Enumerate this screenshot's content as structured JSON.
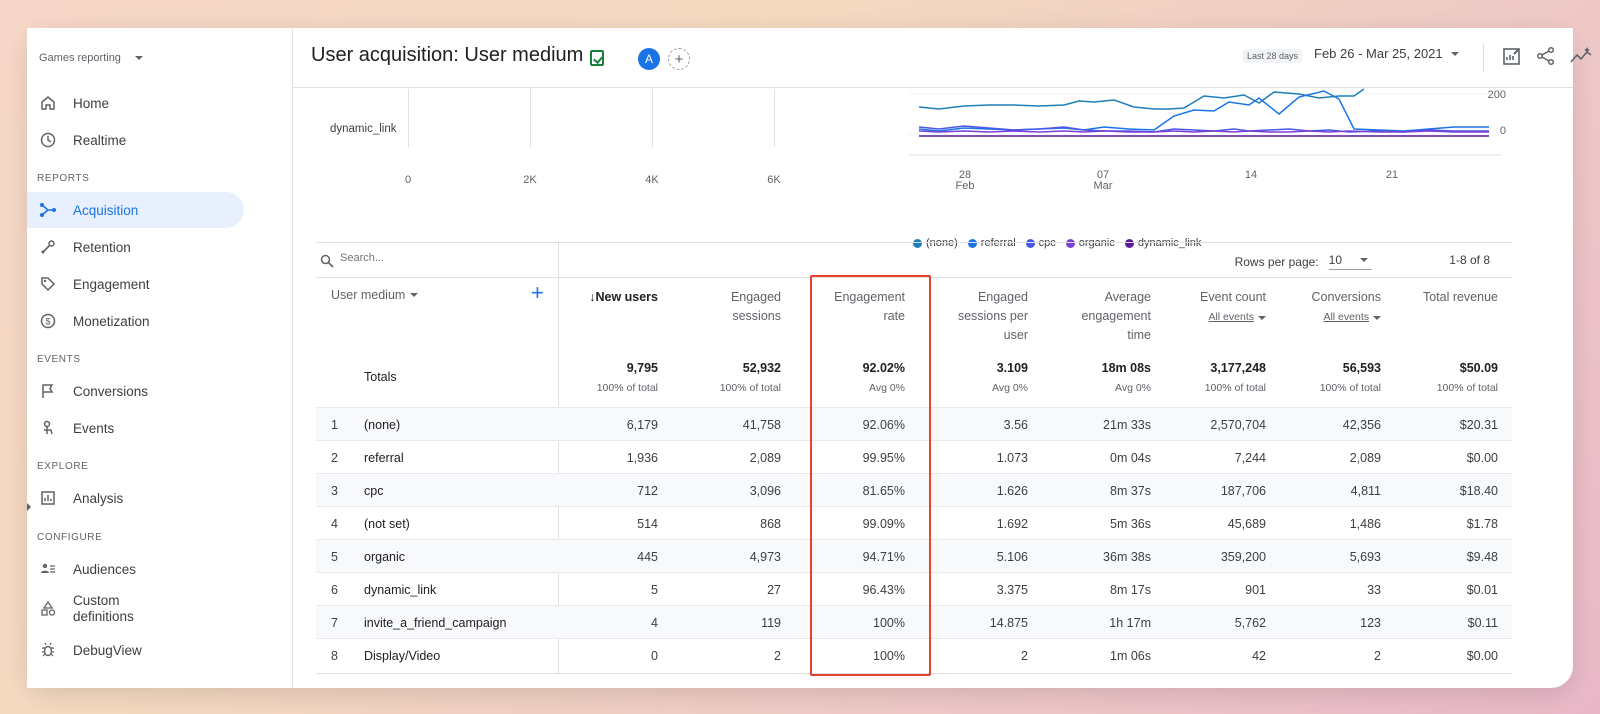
{
  "sidebar": {
    "property": "Games reporting",
    "items": [
      {
        "label": "Home",
        "icon": "home-icon"
      },
      {
        "label": "Realtime",
        "icon": "clock-icon"
      }
    ],
    "sections": [
      {
        "label": "REPORTS",
        "items": [
          {
            "label": "Acquisition",
            "icon": "acquisition-icon",
            "active": true
          },
          {
            "label": "Retention",
            "icon": "retention-icon"
          },
          {
            "label": "Engagement",
            "icon": "tag-icon"
          },
          {
            "label": "Monetization",
            "icon": "dollar-icon"
          }
        ]
      },
      {
        "label": "EVENTS",
        "items": [
          {
            "label": "Conversions",
            "icon": "flag-icon"
          },
          {
            "label": "Events",
            "icon": "touch-icon"
          }
        ]
      },
      {
        "label": "EXPLORE",
        "items": [
          {
            "label": "Analysis",
            "icon": "analysis-icon"
          }
        ]
      },
      {
        "label": "CONFIGURE",
        "items": [
          {
            "label": "Audiences",
            "icon": "audiences-icon"
          },
          {
            "label": "Custom definitions",
            "icon": "shapes-icon"
          },
          {
            "label": "DebugView",
            "icon": "bug-icon"
          }
        ]
      }
    ]
  },
  "header": {
    "title": "User acquisition: User medium",
    "avatar_letter": "A",
    "date_hint": "Last 28 days",
    "date_range": "Feb 26 - Mar 25, 2021"
  },
  "bar_chart": {
    "visible_label": "dynamic_link",
    "ticks": [
      "0",
      "2K",
      "4K",
      "6K"
    ]
  },
  "line_chart": {
    "y_ticks": [
      "200",
      "0"
    ],
    "x_ticks": [
      "28\nFeb",
      "07\nMar",
      "14",
      "21"
    ],
    "x_tick_top": [
      "28",
      "07",
      "14",
      "21"
    ],
    "x_tick_bottom": [
      "Feb",
      "Mar",
      "",
      ""
    ],
    "legend": [
      {
        "name": "(none)",
        "color": "#1e7fb8"
      },
      {
        "name": "referral",
        "color": "#1a73e8"
      },
      {
        "name": "cpc",
        "color": "#4b57e8"
      },
      {
        "name": "organic",
        "color": "#7b3fd9"
      },
      {
        "name": "dynamic_link",
        "color": "#5b1a9e"
      }
    ]
  },
  "table": {
    "search_placeholder": "Search...",
    "rows_per_page_label": "Rows per page:",
    "rows_per_page_value": "10",
    "page_info": "1-8 of 8",
    "dimension_header": "User medium",
    "columns": [
      {
        "label": "New users",
        "sub": ""
      },
      {
        "label": "Engaged sessions",
        "sub": ""
      },
      {
        "label": "Engagement rate",
        "sub": ""
      },
      {
        "label": "Engaged sessions per user",
        "sub": ""
      },
      {
        "label": "Average engagement time",
        "sub": ""
      },
      {
        "label": "Event count",
        "sub": "All events"
      },
      {
        "label": "Conversions",
        "sub": "All events"
      },
      {
        "label": "Total revenue",
        "sub": ""
      }
    ],
    "header_lines": [
      [
        "↓New users"
      ],
      [
        "Engaged",
        "sessions"
      ],
      [
        "Engagement",
        "rate"
      ],
      [
        "Engaged",
        "sessions per",
        "user"
      ],
      [
        "Average",
        "engagement",
        "time"
      ],
      [
        "Event count"
      ],
      [
        "Conversions"
      ],
      [
        "Total revenue"
      ]
    ],
    "totals_label": "Totals",
    "totals": [
      "9,795",
      "52,932",
      "92.02%",
      "3.109",
      "18m 08s",
      "3,177,248",
      "56,593",
      "$50.09"
    ],
    "totals_sub": [
      "100% of total",
      "100% of total",
      "Avg 0%",
      "Avg 0%",
      "Avg 0%",
      "100% of total",
      "100% of total",
      "100% of total"
    ],
    "rows": [
      {
        "n": "1",
        "name": "(none)",
        "values": [
          "6,179",
          "41,758",
          "92.06%",
          "3.56",
          "21m 33s",
          "2,570,704",
          "42,356",
          "$20.31"
        ]
      },
      {
        "n": "2",
        "name": "referral",
        "values": [
          "1,936",
          "2,089",
          "99.95%",
          "1.073",
          "0m 04s",
          "7,244",
          "2,089",
          "$0.00"
        ]
      },
      {
        "n": "3",
        "name": "cpc",
        "values": [
          "712",
          "3,096",
          "81.65%",
          "1.626",
          "8m 37s",
          "187,706",
          "4,811",
          "$18.40"
        ]
      },
      {
        "n": "4",
        "name": "(not set)",
        "values": [
          "514",
          "868",
          "99.09%",
          "1.692",
          "5m 36s",
          "45,689",
          "1,486",
          "$1.78"
        ]
      },
      {
        "n": "5",
        "name": "organic",
        "values": [
          "445",
          "4,973",
          "94.71%",
          "5.106",
          "36m 38s",
          "359,200",
          "5,693",
          "$9.48"
        ]
      },
      {
        "n": "6",
        "name": "dynamic_link",
        "values": [
          "5",
          "27",
          "96.43%",
          "3.375",
          "8m 17s",
          "901",
          "33",
          "$0.01"
        ]
      },
      {
        "n": "7",
        "name": "invite_a_friend_campaign",
        "values": [
          "4",
          "119",
          "100%",
          "14.875",
          "1h 17m",
          "5,762",
          "123",
          "$0.11"
        ]
      },
      {
        "n": "8",
        "name": "Display/Video",
        "values": [
          "0",
          "2",
          "100%",
          "2",
          "1m 06s",
          "42",
          "2",
          "$0.00"
        ]
      }
    ]
  },
  "colors": {
    "accent": "#1a73e8",
    "highlight": "#e8412c",
    "active_bg": "#e8f0fe"
  }
}
